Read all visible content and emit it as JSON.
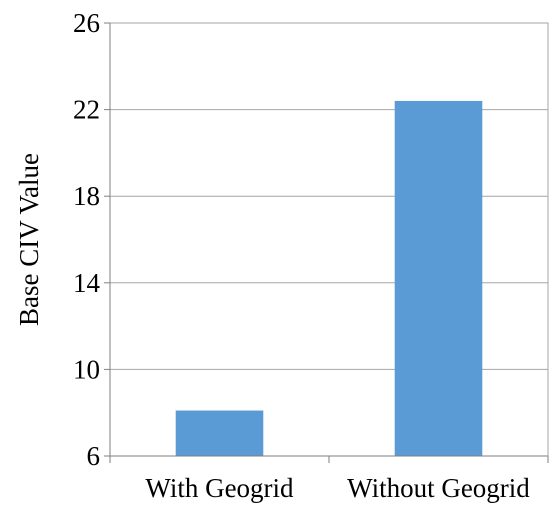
{
  "chart_data": {
    "type": "bar",
    "categories": [
      "With Geogrid",
      "Without Geogrid"
    ],
    "series": [
      {
        "values": [
          8.1,
          22.4
        ]
      }
    ],
    "title": "",
    "xlabel": "",
    "ylabel": "Base CIV Value",
    "ylim": [
      6,
      26
    ],
    "yticks": [
      "6",
      "10",
      "14",
      "18",
      "22",
      "26"
    ],
    "grid": true,
    "legend": "none",
    "colors": {
      "bar": "#5B9BD5",
      "grid": "#A6A6A6",
      "axis": "#7F7F7F"
    }
  }
}
